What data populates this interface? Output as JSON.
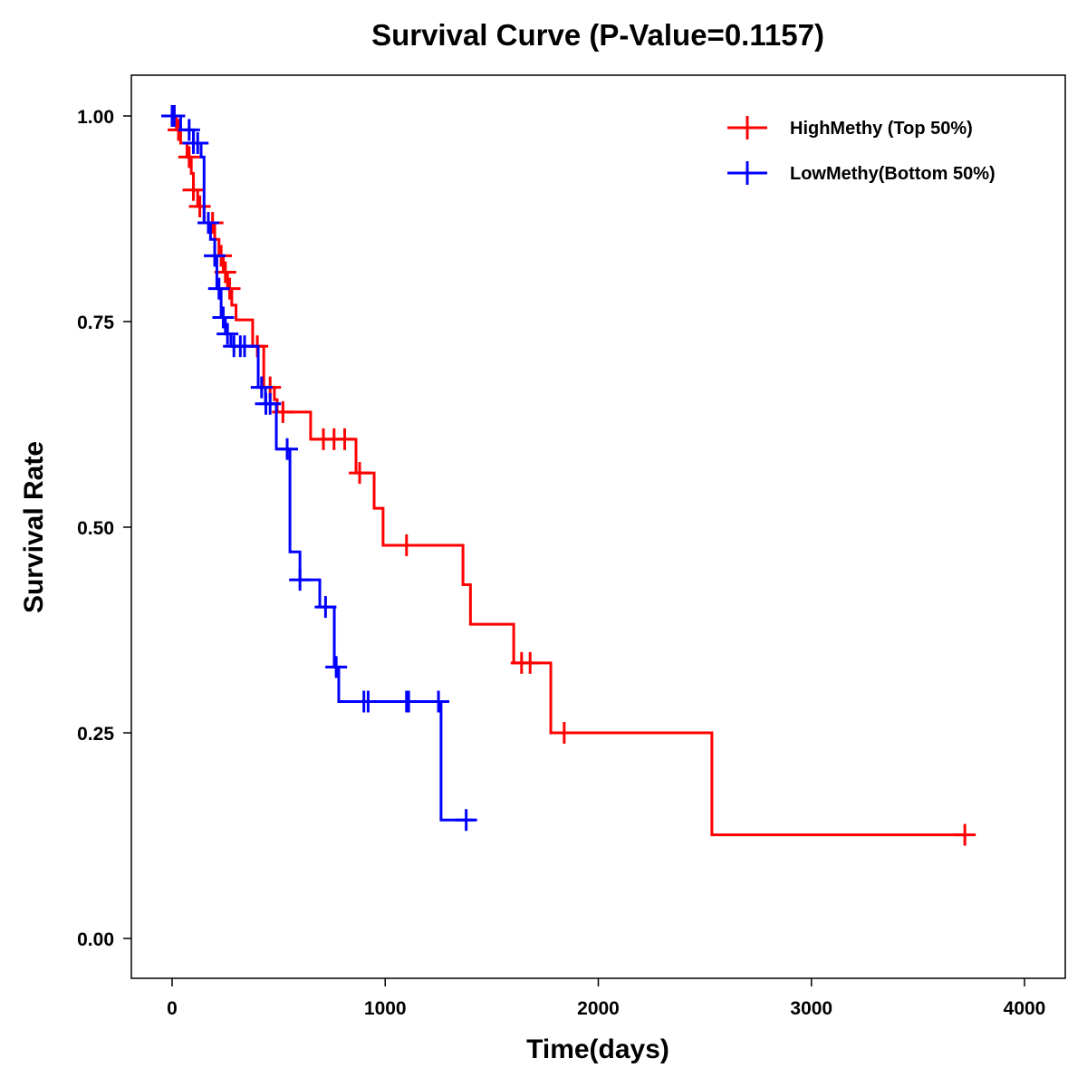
{
  "chart_data": {
    "type": "line",
    "subtype": "kaplan-meier step",
    "title": "Survival Curve (P-Value=0.1157)",
    "xlabel": "Time(days)",
    "ylabel": "Survival Rate",
    "xlim": [
      -200,
      4200
    ],
    "ylim": [
      -0.05,
      1.05
    ],
    "xticks": [
      0,
      1000,
      2000,
      3000,
      4000
    ],
    "xtick_labels": [
      "0",
      "1000",
      "2000",
      "3000",
      "4000"
    ],
    "yticks": [
      0,
      0.25,
      0.5,
      0.75,
      1.0
    ],
    "ytick_labels": [
      "0.00",
      "0.25",
      "0.50",
      "0.75",
      "1.00"
    ],
    "grid": false,
    "legend_position": "top-right",
    "series": [
      {
        "name": "HighMethy (Top 50%)",
        "color": "#ff0000",
        "times": [
          0,
          20,
          40,
          70,
          90,
          100,
          120,
          150,
          200,
          220,
          240,
          260,
          280,
          300,
          378,
          430,
          480,
          493,
          650,
          863,
          948,
          990,
          1365,
          1400,
          1603,
          1777,
          2533
        ],
        "surv": [
          1.0,
          0.983,
          0.967,
          0.95,
          0.93,
          0.91,
          0.89,
          0.87,
          0.85,
          0.83,
          0.81,
          0.79,
          0.77,
          0.752,
          0.72,
          0.67,
          0.655,
          0.64,
          0.607,
          0.566,
          0.523,
          0.478,
          0.43,
          0.382,
          0.335,
          0.25,
          0.126
        ],
        "end_time": 3720,
        "censor_times": [
          10,
          30,
          80,
          100,
          130,
          190,
          230,
          250,
          270,
          400,
          460,
          520,
          710,
          760,
          810,
          880,
          1100,
          1640,
          1680,
          1840,
          3720
        ]
      },
      {
        "name": "LowMethy(Bottom 50%)",
        "color": "#0000ff",
        "times": [
          0,
          40,
          100,
          136,
          150,
          180,
          200,
          210,
          230,
          250,
          276,
          404,
          438,
          489,
          553,
          600,
          693,
          761,
          782,
          1262
        ],
        "surv": [
          1.0,
          0.983,
          0.967,
          0.95,
          0.87,
          0.85,
          0.83,
          0.79,
          0.755,
          0.735,
          0.72,
          0.67,
          0.65,
          0.595,
          0.47,
          0.436,
          0.403,
          0.33,
          0.288,
          0.144
        ],
        "end_time": 1420,
        "censor_times": [
          0,
          10,
          80,
          100,
          120,
          170,
          200,
          220,
          240,
          260,
          290,
          320,
          340,
          420,
          440,
          460,
          540,
          600,
          720,
          770,
          900,
          920,
          1100,
          1110,
          1250,
          1380
        ]
      }
    ]
  }
}
